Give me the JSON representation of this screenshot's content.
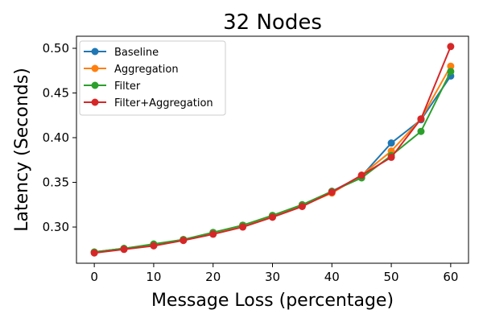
{
  "chart_data": {
    "type": "line",
    "title": "32 Nodes",
    "xlabel": "Message Loss (percentage)",
    "ylabel": "Latency (Seconds)",
    "x": [
      0,
      5,
      10,
      15,
      20,
      25,
      30,
      35,
      40,
      45,
      50,
      55,
      60
    ],
    "xlim": [
      -3,
      63
    ],
    "ylim": [
      0.2595,
      0.5135
    ],
    "xticks": [
      0,
      10,
      20,
      30,
      40,
      50,
      60
    ],
    "yticks": [
      0.3,
      0.35,
      0.4,
      0.45,
      0.5
    ],
    "ytick_labels": [
      "0.30",
      "0.35",
      "0.40",
      "0.45",
      "0.50"
    ],
    "grid": false,
    "legend_position": "upper-left",
    "series": [
      {
        "name": "Baseline",
        "color": "#1f77b4",
        "values": [
          0.272,
          0.276,
          0.28,
          0.286,
          0.293,
          0.302,
          0.312,
          0.324,
          0.34,
          0.357,
          0.394,
          0.42,
          0.469
        ]
      },
      {
        "name": "Aggregation",
        "color": "#ff7f0e",
        "values": [
          0.272,
          0.276,
          0.28,
          0.286,
          0.293,
          0.302,
          0.312,
          0.324,
          0.338,
          0.358,
          0.385,
          0.421,
          0.48
        ]
      },
      {
        "name": "Filter",
        "color": "#2ca02c",
        "values": [
          0.272,
          0.276,
          0.281,
          0.286,
          0.294,
          0.302,
          0.313,
          0.325,
          0.34,
          0.355,
          0.38,
          0.407,
          0.474
        ]
      },
      {
        "name": "Filter+Aggregation",
        "color": "#d62728",
        "values": [
          0.271,
          0.275,
          0.279,
          0.285,
          0.292,
          0.3,
          0.311,
          0.323,
          0.339,
          0.358,
          0.378,
          0.421,
          0.502
        ]
      }
    ]
  }
}
